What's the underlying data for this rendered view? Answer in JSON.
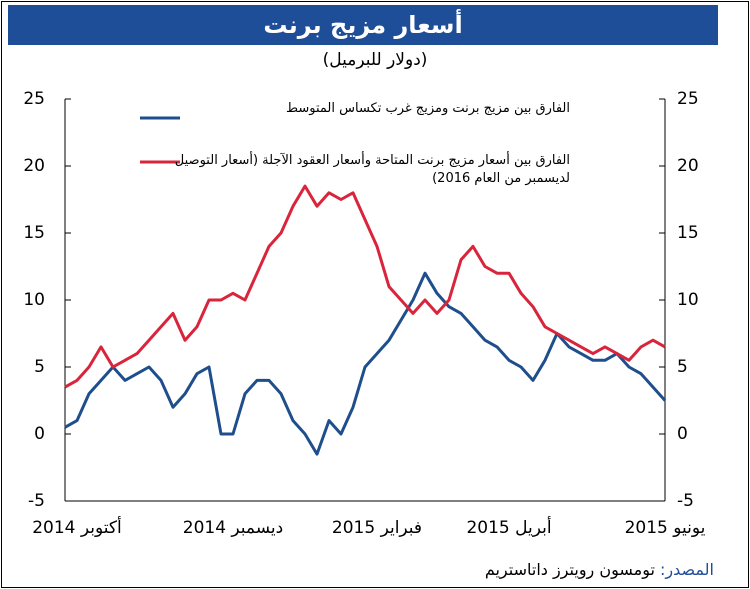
{
  "chart_data": {
    "type": "line",
    "title": "أسعار مزيج برنت",
    "subtitle": "(دولار للبرميل)",
    "categories": [
      null,
      "أكتوبر 2014",
      null,
      null,
      null,
      null,
      null,
      null,
      null,
      null,
      null,
      null,
      null,
      null,
      "ديسمبر 2014",
      null,
      null,
      null,
      null,
      null,
      null,
      null,
      null,
      null,
      null,
      null,
      "فبراير 2015",
      null,
      null,
      null,
      null,
      null,
      null,
      null,
      null,
      null,
      null,
      "أبريل 2015",
      null,
      null,
      null,
      null,
      null,
      null,
      null,
      null,
      null,
      null,
      null,
      null,
      "يونيو 2015"
    ],
    "series": [
      {
        "name": "الفارق بين مزيج برنت ومزيج غرب تكساس المتوسط",
        "color": "#1f4e8c",
        "values": [
          0.5,
          1,
          3,
          4,
          5,
          4,
          4.5,
          5,
          4,
          2,
          3,
          4.5,
          5,
          0,
          0,
          3,
          4,
          4,
          3,
          1,
          0,
          -1.5,
          1,
          0,
          2,
          5,
          6,
          7,
          8.5,
          10,
          12,
          10.5,
          9.5,
          9,
          8,
          7,
          6.5,
          5.5,
          5,
          4,
          5.5,
          7.5,
          6.5,
          6,
          5.5,
          5.5,
          6,
          5,
          4.5,
          3.5,
          2.5
        ]
      },
      {
        "name": "الفارق بين أسعار مزيج برنت المتاحة وأسعار العقود الآجلة (أسعار التوصيل لديسمبر من العام 2016)",
        "color": "#d9253b",
        "values": [
          3.5,
          4,
          5,
          6.5,
          5,
          5.5,
          6,
          7,
          8,
          9,
          7,
          8,
          10,
          10,
          10.5,
          10,
          12,
          14,
          15,
          17,
          18.5,
          17,
          18,
          17.5,
          18,
          16,
          14,
          11,
          10,
          9,
          10,
          9,
          10,
          13,
          14,
          12.5,
          12,
          12,
          10.5,
          9.5,
          8,
          7.5,
          7,
          6.5,
          6,
          6.5,
          6,
          5.5,
          6.5,
          7,
          6.5
        ]
      }
    ],
    "ylim": [
      -5,
      25
    ],
    "yticks": [
      -5,
      0,
      5,
      10,
      15,
      20,
      25
    ],
    "y2lim": [
      -5,
      25
    ],
    "y2ticks": [
      -5,
      0,
      5,
      10,
      15,
      20,
      25
    ],
    "source_label": "المصدر:",
    "source": "تومسون رويترز داتاستريم"
  }
}
